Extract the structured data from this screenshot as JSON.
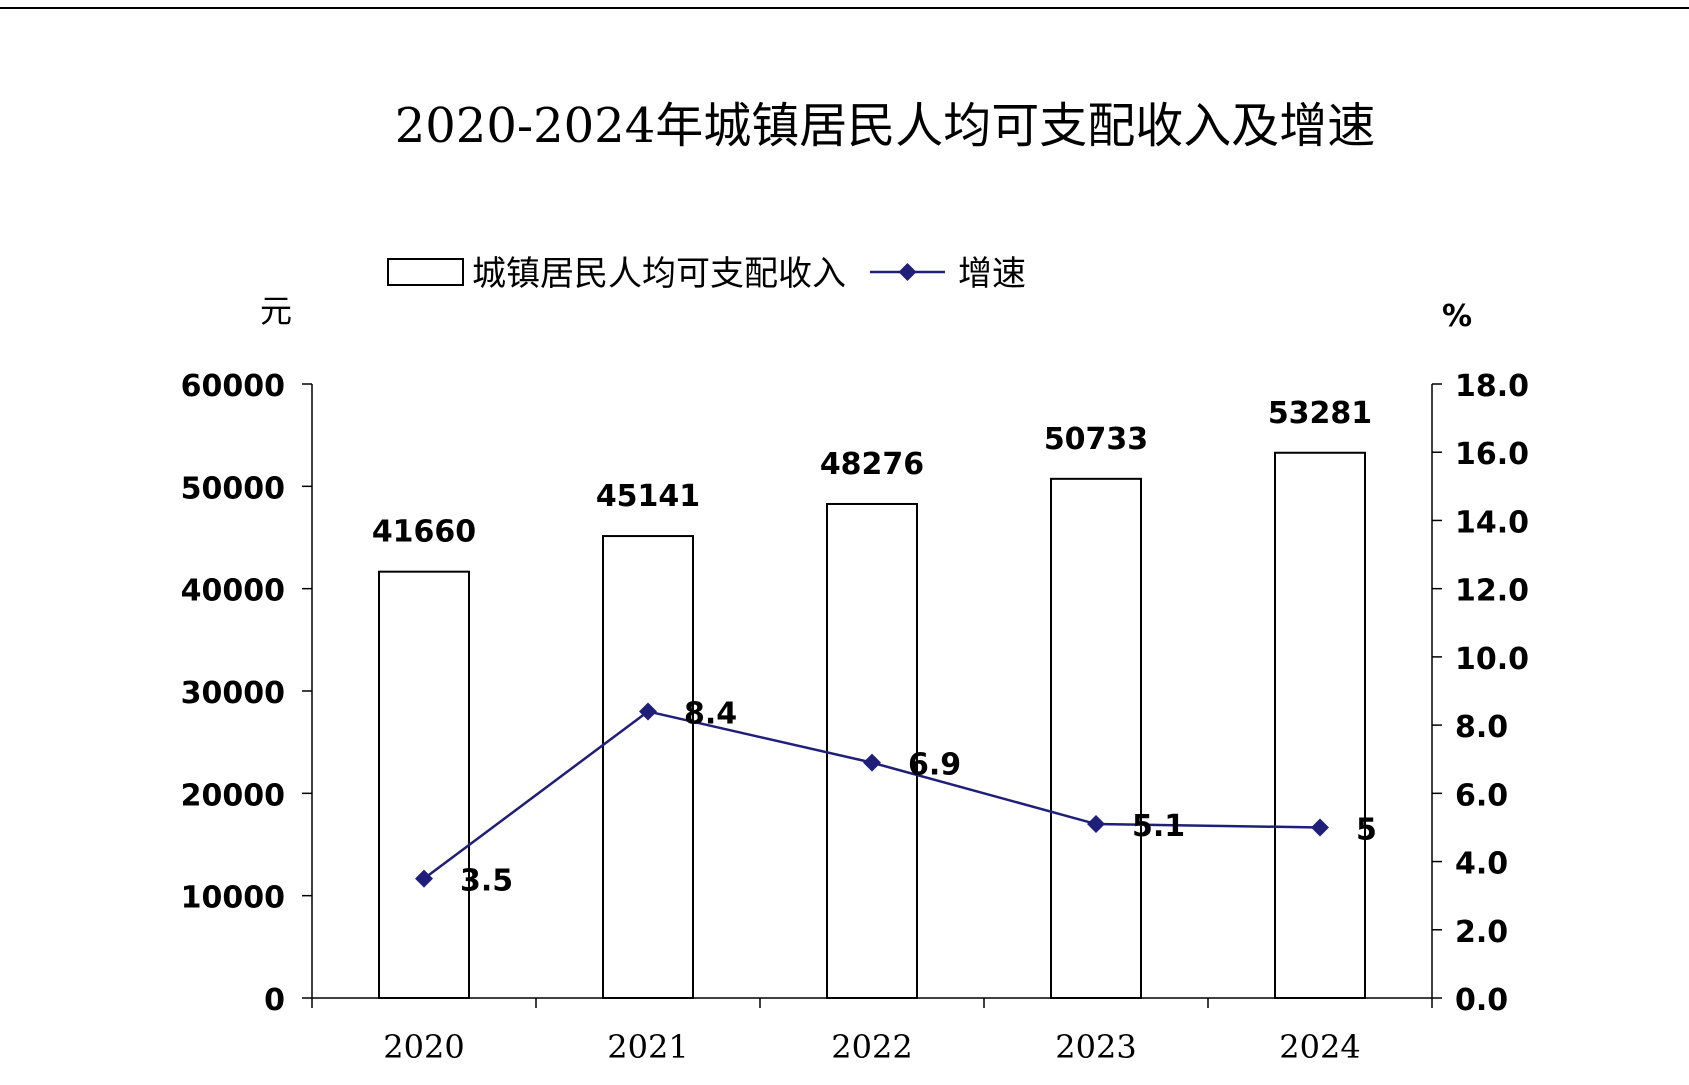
{
  "chart_data": {
    "type": "bar",
    "title": "2020-2024年城镇居民人均可支配收入及增速",
    "categories": [
      "2020",
      "2021",
      "2022",
      "2023",
      "2024"
    ],
    "series": [
      {
        "name": "城镇居民人均可支配收入",
        "type": "bar",
        "axis": "left",
        "values": [
          41660,
          45141,
          48276,
          50733,
          53281
        ],
        "labels": [
          "41660",
          "45141",
          "48276",
          "50733",
          "53281"
        ]
      },
      {
        "name": "增速",
        "type": "line",
        "axis": "right",
        "values": [
          3.5,
          8.4,
          6.9,
          5.1,
          5
        ],
        "labels": [
          "3.5",
          "8.4",
          "6.9",
          "5.1",
          "5"
        ],
        "color": "#1f1f7a"
      }
    ],
    "y_left": {
      "unit": "元",
      "min": 0,
      "max": 60000,
      "step": 10000,
      "ticks": [
        "0",
        "10000",
        "20000",
        "30000",
        "40000",
        "50000",
        "60000"
      ]
    },
    "y_right": {
      "unit": "%",
      "min": 0,
      "max": 18,
      "step": 2,
      "ticks": [
        "0.0",
        "2.0",
        "4.0",
        "6.0",
        "8.0",
        "10.0",
        "12.0",
        "14.0",
        "16.0",
        "18.0"
      ]
    },
    "legend": {
      "position": "top"
    },
    "grid": false
  }
}
